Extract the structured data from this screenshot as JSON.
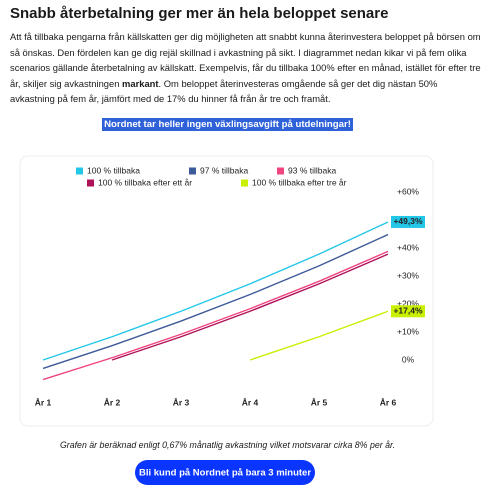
{
  "header": {
    "title": "Snabb återbetalning ger mer än hela beloppet senare"
  },
  "intro": [
    "Att få tillbaka pengarna från källskatten ger dig möjligheten att snabbt kunna återinvestera beloppet på börsen om så önskas. Den fördelen kan ge dig rejäl skillnad i avkastning på sikt. I diagrammet nedan kikar vi på fem olika scenarios gällande återbetalning av källskatt. Exempelvis, får du tillbaka 100% efter en månad, istället för efter tre år, skiljer sig avkastningen ",
    "markant",
    ". Om beloppet återinvesteras omgående så ger det dig nästan 50% avkastning på fem år, jämfört med de 17% du hinner få från år tre och framåt."
  ],
  "highlight": "Nordnet tar heller ingen växlingsavgift på utdelningar!",
  "chart_data": {
    "type": "line",
    "categories": [
      "År 1",
      "År 2",
      "År 3",
      "År 4",
      "År 5",
      "År 6"
    ],
    "series": [
      {
        "name": "100 % tillbaka",
        "color": "#22c7e8",
        "values": [
          0,
          8.3,
          17.4,
          27.2,
          37.8,
          49.3
        ],
        "value_labels": [
          null,
          null,
          null,
          null,
          null,
          "+49,3%"
        ]
      },
      {
        "name": "97 % tillbaka",
        "color": "#3d5a99",
        "values": [
          -3,
          5.1,
          13.9,
          23.4,
          33.6,
          44.8
        ]
      },
      {
        "name": "93 % tillbaka",
        "color": "#f0457f",
        "values": [
          -7,
          0.8,
          9.2,
          18.3,
          28.1,
          38.8
        ]
      },
      {
        "name": "100 % tillbaka efter ett år",
        "color": "#b0125a",
        "values": [
          null,
          0,
          8.3,
          17.4,
          27.2,
          37.8
        ]
      },
      {
        "name": "100 % tillbaka efter tre år",
        "color": "#c8f000",
        "values": [
          null,
          null,
          null,
          0,
          8.3,
          17.4
        ],
        "value_labels": [
          null,
          null,
          null,
          null,
          null,
          "+17,4%"
        ]
      }
    ],
    "ylim": [
      -10,
      65
    ],
    "yticks": [
      {
        "value": 0,
        "label": "0%"
      },
      {
        "value": 10,
        "label": "+10%"
      },
      {
        "value": 20,
        "label": "+20%"
      },
      {
        "value": 30,
        "label": "+30%"
      },
      {
        "value": 40,
        "label": "+40%"
      },
      {
        "value": 50,
        "label": "+50%"
      },
      {
        "value": 60,
        "label": "+60%"
      }
    ],
    "grid": false
  },
  "footnote": "Grafen är beräknad enligt 0,67% månatlig avkastning vilket motsvarar cirka 8% per år.",
  "button": "Bli kund på Nordnet på bara 3 minuter"
}
